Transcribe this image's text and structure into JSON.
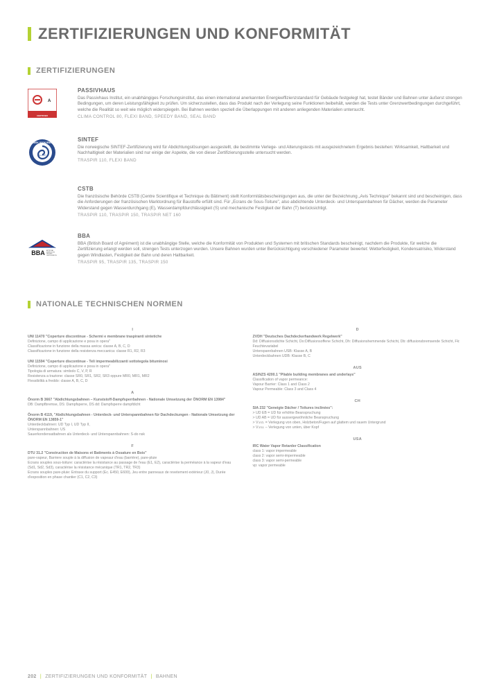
{
  "pageTitle": "ZERTIFIZIERUNGEN UND KONFORMITÄT",
  "sec1": "ZERTIFIZIERUNGEN",
  "certs": [
    {
      "name": "PASSIVHAUS",
      "desc": "Das Passivhaus Institut, ein unabhängiges Forschungsinstitut, das einen international anerkannten Energieeffizienzstandard für Gebäude festgelegt hat, testet Bänder und Bahnen unter äußerst strengen Bedingungen, um deren Leistungsfähigkeit zu prüfen. Um sicherzustellen, dass das Produkt nach der Verlegung seine Funktionen beibehält, werden die Tests unter Grenzwertbedingungen durchgeführt, welche die Realität so weit wie möglich widerspiegeln. Bei Bahnen werden speziell die Überlappungen mit anderen anliegenden Materialien untersucht.",
      "prod": "CLIMA CONTROL 80, FLEXI BAND, SPEEDY BAND, SEAL BAND"
    },
    {
      "name": "SINTEF",
      "desc": "Die norwegische SINTEF-Zertifizierung wird für Abdichtungslösungen ausgestellt, die bestimmte Verlege- und Alterungstests mit ausgezeichnetem Ergebnis bestehen: Wirksamkeit, Haltbarkeit und Nachhaltigkeit der Materialien sind nur einige der Aspekte, die von dieser Zertifizierungsstelle untersucht werden.",
      "prod": "TRASPIR 110, FLEXI BAND"
    },
    {
      "name": "CSTB",
      "desc": "Die französische Behörde CSTB (Centre Scientifique et Technique du Bâtiment) stellt Konformitätsbescheinigungen aus, die unter der Bezeichnung „Avis Technique\" bekannt sind und bescheinigen, dass die Anforderungen der französischen Marktordnung für Baustoffe erfüllt sind. Für „Ecrans de Sous-Toiture\", also abdichtende Unterdeck- und Unterspannbahnen für Dächer, werden die Parameter Widerstand gegen Wasserdurchgang (E), Wasserdampfdurchlässigkeit (S) und mechanische Festigkeit der Bahn (T) berücksichtigt.",
      "prod": "TRASPIR 110, TRASPIR 150, TRASPIR NET 160"
    },
    {
      "name": "BBA",
      "desc": "BBA (British Board of Agrément) ist die unabhängige Stelle, welche die Konformität von Produkten und Systemen mit britischen Standards bescheinigt, nachdem die Produkte, für welche die Zertifizierung erlangt werden soll, strengen Tests unterzogen wurden. Unsere Bahnen wurden unter Berücksichtigung verschiedener Parameter bewertet: Wetterfestigkeit, Kondensatrisiko, Widerstand gegen Windlasten, Festigkeit der Bahn und deren Haltbarkeit.",
      "prod": "TRASPIR 95, TRASPIR 135, TRASPIR 150"
    }
  ],
  "sec2": "NATIONALE TECHNISCHEN NORMEN",
  "left": [
    {
      "country": "I",
      "blocks": [
        {
          "t": "UNI 11470 \"Coperture discontinue - Schermi e membrane traspiranti sintetiche",
          "b": "Definizione, campo di applicazione e posa in opera\"\nClassificazione in funzione della massa areica: classe A, B, C, D\nClassificazione in funzione della resistenza meccanica: classe R1, R2, R3"
        },
        {
          "t": "UNI 11594 \"Coperture discontinue - Teli impermeabilizzanti sottotegola bituminosi",
          "b": "Definizione, campo di applicazione e posa in opera\"\nTipologia di armatura: simbolo C, V, P, R\nResistenza a trazione: classe SR0, SR1, SR2, SR3 oppure MR0, MR1, MR2\nFlessibilità a freddo: classe A, B, C, D"
        }
      ]
    },
    {
      "country": "A",
      "blocks": [
        {
          "t": "Önorm B 3667 \"Abdichtungsbahnen – Kunststoff-Dampfsperrbahnen - Nationale Umsetzung der ÖNORM EN 13984\"",
          "b": "DB: Dampfbremse, DS: Dampfsperre, DS dd: Dampfsperre dampfdicht"
        },
        {
          "t": "Önorm B 4119, \"Abdichtungsbahnen - Unterdeck- und Unterspannbahnen für Dachdeckungen - Nationale Umsetzung der ÖNORM EN 13859-1\"",
          "b": "Unterdeckbahnen: UD Typ I, UD Typ II,\nUnterspannbahnen: US\nSauerkondensatbahnen als Unterdeck- und Unterspannbahnen: S-do nsk"
        }
      ]
    },
    {
      "country": "F",
      "blocks": [
        {
          "t": "DTU 31.2 \"Construction de Maisons et Batiments à Ossature en Bois\"",
          "b": "pare-vapeur, Barriere souple à la diffusion de vapeaur d'eau (barrière), pare-pluie\nEcrans souples sous-toiture: caractérise la résistance au passage de l'eau (E1, E2), caractérise la perméance à la vapeur d'eau (Sd1, Sd2, Sd3), caractérise la résistance mécanique (TR1, TR2, TR3)\nEcrans souples pare-pluie: Entraxe du support (Ec. E450, E600), Jeu entre panneaux de revetement extérieur (J0, J), Durée d'exposition en phase chantier (C1, C2, C3)"
        }
      ]
    }
  ],
  "right": [
    {
      "country": "D",
      "blocks": [
        {
          "t": "ZVDH \"Deutsches Dachdeckerhandwerk Regelwerk\"",
          "b": "Dd: Diffusionsdichte Schicht, Do:Diffusionsoffene Schicht, Dh: Diffusionshemmende Schicht, Db: diffusionsbremsende Schicht, Fk: Feuchtevariabel\nUnterspannbahnen USB: Klasse A, B\nUnterdeckbahnen UDB: Klasse B, C"
        }
      ]
    },
    {
      "country": "AUS",
      "blocks": [
        {
          "t": "AS/NZS 4200.1 \"Pliable building membranes and underlays\"",
          "b": "Classification of vapor permeance:\nVapour Barrier: Class 1 and Class 2\nVapour Permeable: Class 3 and Class 4"
        }
      ]
    },
    {
      "country": "CH",
      "blocks": [
        {
          "t": "SIA 232 \"Geneigte Dächer / Toitures inclinées\":",
          "b": "> UD EB = UD für erhöhte Beanspruchung\n> UD AB = UD für aussergewöhnliche Beanspruchung\n> V.v.o. = Verlegung von oben, Holzbeton/Fugen auf glattem und rauem Untergrund\n> V.v.u. – Verlegung von unten, über Kopf"
        }
      ]
    },
    {
      "country": "USA",
      "blocks": [
        {
          "t": "IRC Water Vapor Retarder Classification",
          "b": "class 1: vapor impermeable\nclass 2: vapor semi-impermeable\nclass 3: vapor semi-permeable\nvp: vapor permeable"
        }
      ]
    }
  ],
  "footer": {
    "page": "202",
    "a": "ZERTIFIZIERUNGEN UND KONFORMITÄT",
    "b": "BAHNEN"
  }
}
